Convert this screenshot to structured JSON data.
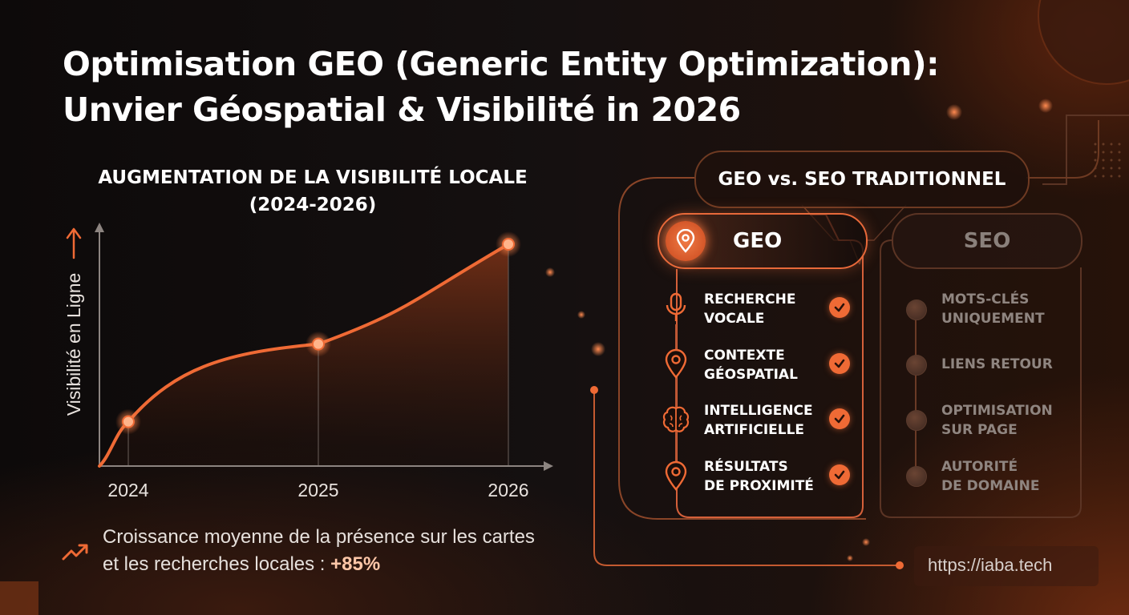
{
  "title_line1": "Optimisation GEO (Generic Entity Optimization):",
  "title_line2": "Unvier Géospatial & Visibilité in 2026",
  "chart_data": {
    "type": "area",
    "title_line1": "AUGMENTATION DE LA VISIBILITÉ LOCALE",
    "title_line2": "(2024-2026)",
    "ylabel": "Visibilité en Ligne",
    "xlabel": "",
    "x_labels": [
      "2024",
      "2025",
      "2026"
    ],
    "x": [
      2024,
      2025,
      2026
    ],
    "values": [
      20,
      55,
      100
    ],
    "ylim": [
      0,
      110
    ],
    "grid": false,
    "accent": "#ef6a35"
  },
  "bottom_note": {
    "text": "Croissance moyenne de la présence sur les cartes et les recherches locales :",
    "highlight": "+85%"
  },
  "comparison": {
    "title": "GEO vs. SEO TRADITIONNEL",
    "geo": {
      "label": "GEO",
      "items": [
        {
          "label": "RECHERCHE\nVOCALE",
          "icon": "microphone-icon"
        },
        {
          "label": "CONTEXTE\nGÉOSPATIAL",
          "icon": "location-pin-icon"
        },
        {
          "label": "INTELLIGENCE\nARTIFICIELLE",
          "icon": "brain-icon"
        },
        {
          "label": "RÉSULTATS\nDE PROXIMITÉ",
          "icon": "location-pin-icon"
        }
      ]
    },
    "seo": {
      "label": "SEO",
      "items": [
        {
          "label": "MOTS-CLÉS\nUNIQUEMENT"
        },
        {
          "label": "LIENS RETOUR"
        },
        {
          "label": "OPTIMISATION\nSUR PAGE"
        },
        {
          "label": "AUTORITÉ\nDE DOMAINE"
        }
      ]
    }
  },
  "url": "https://iaba.tech",
  "colors": {
    "accent": "#ef6a35",
    "muted": "#8f8580",
    "background": "#120d0c"
  }
}
